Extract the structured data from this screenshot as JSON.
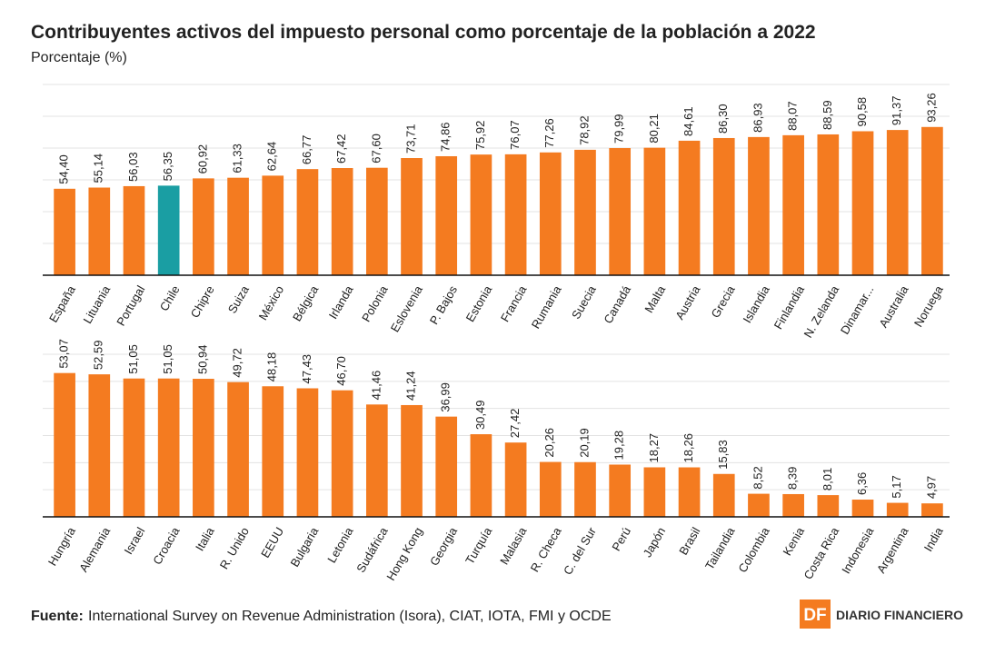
{
  "chart_data": [
    {
      "type": "bar",
      "title": "Contribuyentes activos del impuesto personal como porcentaje de la población a 2022",
      "subtitle": "Porcentaje (%)",
      "categories": [
        "España",
        "Lituania",
        "Portugal",
        "Chile",
        "Chipre",
        "Suiza",
        "México",
        "Bélgica",
        "Irlanda",
        "Polonia",
        "Eslovenia",
        "P. Bajos",
        "Estonia",
        "Francia",
        "Rumania",
        "Suecia",
        "Canadá",
        "Malta",
        "Austria",
        "Grecia",
        "Islandia",
        "Finlandia",
        "N. Zelanda",
        "Dinamar...",
        "Australia",
        "Noruega"
      ],
      "values": [
        54.4,
        55.14,
        56.03,
        56.35,
        60.92,
        61.33,
        62.64,
        66.77,
        67.42,
        67.6,
        73.71,
        74.86,
        75.92,
        76.07,
        77.26,
        78.92,
        79.99,
        80.21,
        84.61,
        86.3,
        86.93,
        88.07,
        88.59,
        90.58,
        91.37,
        93.26
      ],
      "value_labels": [
        "54,40",
        "55,14",
        "56,03",
        "56,35",
        "60,92",
        "61,33",
        "62,64",
        "66,77",
        "67,42",
        "67,60",
        "73,71",
        "74,86",
        "75,92",
        "76,07",
        "77,26",
        "78,92",
        "79,99",
        "80,21",
        "84,61",
        "86,30",
        "86,93",
        "88,07",
        "88,59",
        "90,58",
        "91,37",
        "93,26"
      ],
      "colors": [
        "#f47b20",
        "#f47b20",
        "#f47b20",
        "#1a9ea3",
        "#f47b20",
        "#f47b20",
        "#f47b20",
        "#f47b20",
        "#f47b20",
        "#f47b20",
        "#f47b20",
        "#f47b20",
        "#f47b20",
        "#f47b20",
        "#f47b20",
        "#f47b20",
        "#f47b20",
        "#f47b20",
        "#f47b20",
        "#f47b20",
        "#f47b20",
        "#f47b20",
        "#f47b20",
        "#f47b20",
        "#f47b20",
        "#f47b20"
      ],
      "ylim": [
        0,
        120
      ],
      "yticks": [
        0,
        20,
        40,
        60,
        80,
        100,
        120
      ],
      "grid": true
    },
    {
      "type": "bar",
      "categories": [
        "Hungría",
        "Alemania",
        "Israel",
        "Croacia",
        "Italia",
        "R. Unido",
        "EEUU",
        "Bulgaria",
        "Letonia",
        "Sudáfrica",
        "Hong Kong",
        "Georgia",
        "Turquía",
        "Malasia",
        "R. Checa",
        "C. del Sur",
        "Perú",
        "Japón",
        "Brasil",
        "Tailandia",
        "Colombia",
        "Kenia",
        "Costa Rica",
        "Indonesia",
        "Argentina",
        "India"
      ],
      "values": [
        53.07,
        52.59,
        51.05,
        51.05,
        50.94,
        49.72,
        48.18,
        47.43,
        46.7,
        41.46,
        41.24,
        36.99,
        30.49,
        27.42,
        20.26,
        20.19,
        19.28,
        18.27,
        18.26,
        15.83,
        8.52,
        8.39,
        8.01,
        6.36,
        5.17,
        4.97
      ],
      "value_labels": [
        "53,07",
        "52,59",
        "51,05",
        "51,05",
        "50,94",
        "49,72",
        "48,18",
        "47,43",
        "46,70",
        "41,46",
        "41,24",
        "36,99",
        "30,49",
        "27,42",
        "20,26",
        "20,19",
        "19,28",
        "18,27",
        "18,26",
        "15,83",
        "8,52",
        "8,39",
        "8,01",
        "6,36",
        "5,17",
        "4,97"
      ],
      "color": "#f47b20",
      "ylim": [
        0,
        60
      ],
      "yticks": [
        0,
        10,
        20,
        30,
        40,
        50,
        60
      ],
      "grid": true
    }
  ],
  "source_label": "Fuente:",
  "source": "International Survey on Revenue Administration (Isora), CIAT, IOTA, FMI y OCDE",
  "brand_mark": "DF",
  "brand": "DIARIO FINANCIERO"
}
